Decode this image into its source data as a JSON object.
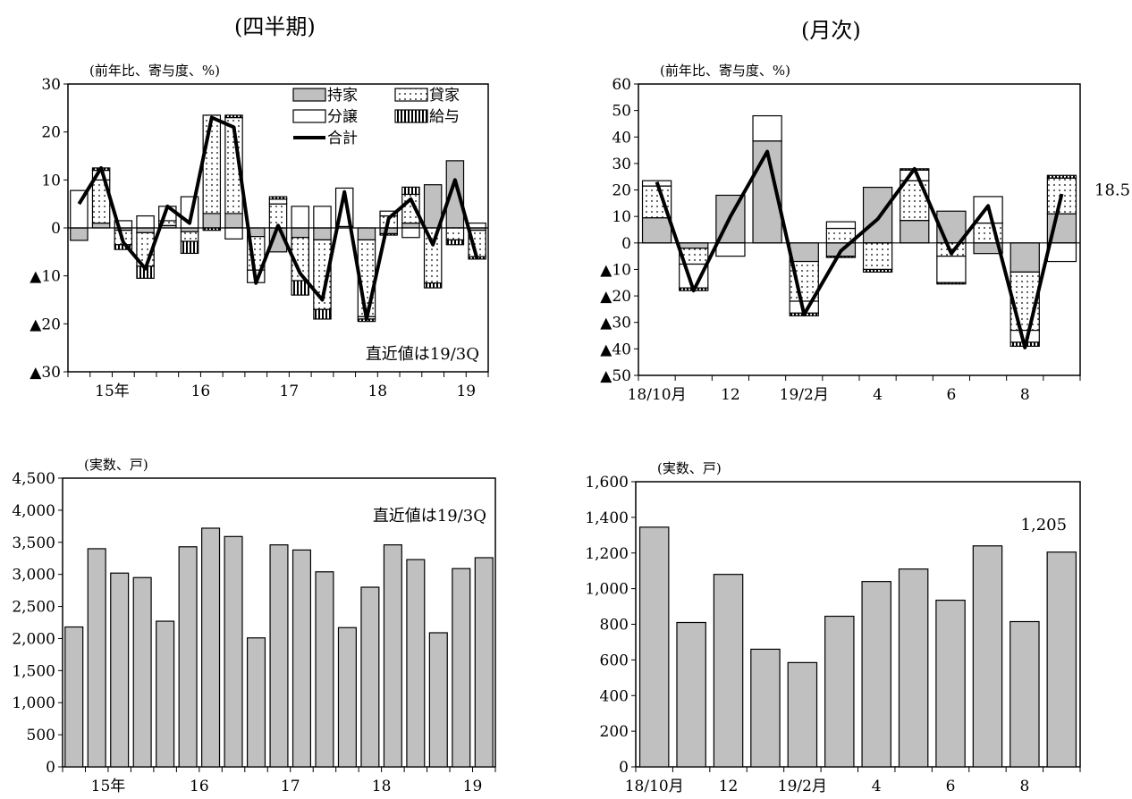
{
  "titles": {
    "quarterly": "(四半期)",
    "monthly": "(月次)"
  },
  "chart_data": [
    {
      "id": "q_contrib",
      "type": "bar",
      "stacked": true,
      "unit_label": "(前年比、寄与度、%)",
      "note": "直近値は19/3Q",
      "ylim": [
        -30,
        30
      ],
      "yticks": [
        30,
        20,
        10,
        0,
        -10,
        -20,
        -30
      ],
      "ytick_labels": [
        "30",
        "20",
        "10",
        "0",
        "▲10",
        "▲20",
        "▲30"
      ],
      "x_labels": [
        {
          "label": "15年",
          "index": 1
        },
        {
          "label": "16",
          "index": 5
        },
        {
          "label": "17",
          "index": 9
        },
        {
          "label": "18",
          "index": 13
        },
        {
          "label": "19",
          "index": 17
        }
      ],
      "legend": {
        "position": "top-right",
        "items": [
          {
            "name": "持家",
            "pattern": "gray"
          },
          {
            "name": "貸家",
            "pattern": "dots"
          },
          {
            "name": "分譲",
            "pattern": "white"
          },
          {
            "name": "給与",
            "pattern": "grid"
          },
          {
            "name": "合計",
            "pattern": "line"
          }
        ]
      },
      "series": [
        {
          "name": "持家",
          "values": [
            -2.6,
            1.0,
            -0.5,
            -1.0,
            0.5,
            -0.8,
            3.0,
            3.0,
            -1.8,
            -5.0,
            -2.0,
            -2.5,
            0.3,
            -2.5,
            -1.2,
            1.0,
            9.0,
            14.0,
            -0.5
          ]
        },
        {
          "name": "貸家",
          "values": [
            0.0,
            9.0,
            -3.0,
            -7.0,
            1.0,
            -2.0,
            20.5,
            20.0,
            -7.0,
            5.0,
            -9.0,
            -14.5,
            0.0,
            -16.0,
            2.5,
            6.0,
            -11.5,
            -2.5,
            -5.5
          ]
        },
        {
          "name": "分譲",
          "values": [
            7.8,
            2.0,
            1.5,
            2.5,
            3.0,
            6.5,
            0.0,
            -2.3,
            -2.6,
            1.0,
            4.5,
            4.5,
            8.0,
            -0.5,
            1.0,
            -2.0,
            0.0,
            0.0,
            1.0
          ]
        },
        {
          "name": "給与",
          "values": [
            0.0,
            0.5,
            -1.0,
            -2.5,
            0.0,
            -2.5,
            -0.5,
            0.5,
            0.0,
            0.5,
            -3.0,
            -2.0,
            0.0,
            -0.5,
            -0.3,
            1.5,
            -1.0,
            -1.0,
            -0.5
          ]
        }
      ],
      "total": [
        5.0,
        12.5,
        -3.0,
        -8.5,
        4.5,
        1.0,
        23.0,
        21.0,
        -11.5,
        0.5,
        -9.5,
        -15.0,
        7.5,
        -19.0,
        2.0,
        6.0,
        -3.5,
        10.0,
        -6.5
      ]
    },
    {
      "id": "m_contrib",
      "type": "bar",
      "stacked": true,
      "unit_label": "(前年比、寄与度、%)",
      "end_label": "18.5",
      "ylim": [
        -50,
        60
      ],
      "yticks": [
        60,
        50,
        40,
        30,
        20,
        10,
        0,
        -10,
        -20,
        -30,
        -40,
        -50
      ],
      "ytick_labels": [
        "60",
        "50",
        "40",
        "30",
        "20",
        "10",
        "0",
        "▲10",
        "▲20",
        "▲30",
        "▲40",
        "▲50"
      ],
      "x_labels": [
        {
          "label": "18/10月",
          "index": 0
        },
        {
          "label": "12",
          "index": 2
        },
        {
          "label": "19/2月",
          "index": 4
        },
        {
          "label": "4",
          "index": 6
        },
        {
          "label": "6",
          "index": 8
        },
        {
          "label": "8",
          "index": 10
        }
      ],
      "series": [
        {
          "name": "持家",
          "values": [
            9.5,
            -2.0,
            18.0,
            38.5,
            -7.0,
            -5.0,
            21.0,
            8.5,
            12.0,
            -4.0,
            -11.0,
            11.0
          ]
        },
        {
          "name": "貸家",
          "values": [
            12.0,
            -6.0,
            0.0,
            0.0,
            -15.0,
            5.5,
            -10.0,
            15.0,
            -5.0,
            7.5,
            -22.0,
            13.5
          ]
        },
        {
          "name": "分譲",
          "values": [
            2.0,
            -9.0,
            -5.0,
            9.5,
            -4.5,
            2.5,
            0.0,
            4.0,
            -10.0,
            10.0,
            -4.5,
            -7.0
          ]
        },
        {
          "name": "給与",
          "values": [
            0.0,
            -1.0,
            0.0,
            0.0,
            -1.0,
            -0.5,
            -1.0,
            0.5,
            -0.5,
            0.0,
            -1.5,
            1.0
          ]
        }
      ],
      "total": [
        23.0,
        -18.0,
        10.0,
        34.5,
        -27.0,
        -3.0,
        9.0,
        28.0,
        -4.0,
        14.0,
        -39.5,
        18.5
      ]
    },
    {
      "id": "q_actual",
      "type": "bar",
      "unit_label": "(実数、戸)",
      "note": "直近値は19/3Q",
      "ylim": [
        0,
        4500
      ],
      "yticks": [
        4500,
        4000,
        3500,
        3000,
        2500,
        2000,
        1500,
        1000,
        500,
        0
      ],
      "ytick_labels": [
        "4,500",
        "4,000",
        "3,500",
        "3,000",
        "2,500",
        "2,000",
        "1,500",
        "1,000",
        "500",
        "0"
      ],
      "x_labels": [
        {
          "label": "15年",
          "index": 1
        },
        {
          "label": "16",
          "index": 5
        },
        {
          "label": "17",
          "index": 9
        },
        {
          "label": "18",
          "index": 13
        },
        {
          "label": "19",
          "index": 17
        }
      ],
      "values": [
        2180,
        3400,
        3020,
        2950,
        2270,
        3430,
        3720,
        3590,
        2010,
        3460,
        3380,
        3040,
        2170,
        2800,
        3460,
        3230,
        2090,
        3090,
        3260
      ]
    },
    {
      "id": "m_actual",
      "type": "bar",
      "unit_label": "(実数、戸)",
      "end_label": "1,205",
      "ylim": [
        0,
        1600
      ],
      "yticks": [
        1600,
        1400,
        1200,
        1000,
        800,
        600,
        400,
        200,
        0
      ],
      "ytick_labels": [
        "1,600",
        "1,400",
        "1,200",
        "1,000",
        "800",
        "600",
        "400",
        "200",
        "0"
      ],
      "x_labels": [
        {
          "label": "18/10月",
          "index": 0
        },
        {
          "label": "12",
          "index": 2
        },
        {
          "label": "19/2月",
          "index": 4
        },
        {
          "label": "4",
          "index": 6
        },
        {
          "label": "6",
          "index": 8
        },
        {
          "label": "8",
          "index": 10
        }
      ],
      "values": [
        1345,
        810,
        1080,
        660,
        585,
        845,
        1040,
        1110,
        935,
        1240,
        815,
        1205
      ]
    }
  ]
}
